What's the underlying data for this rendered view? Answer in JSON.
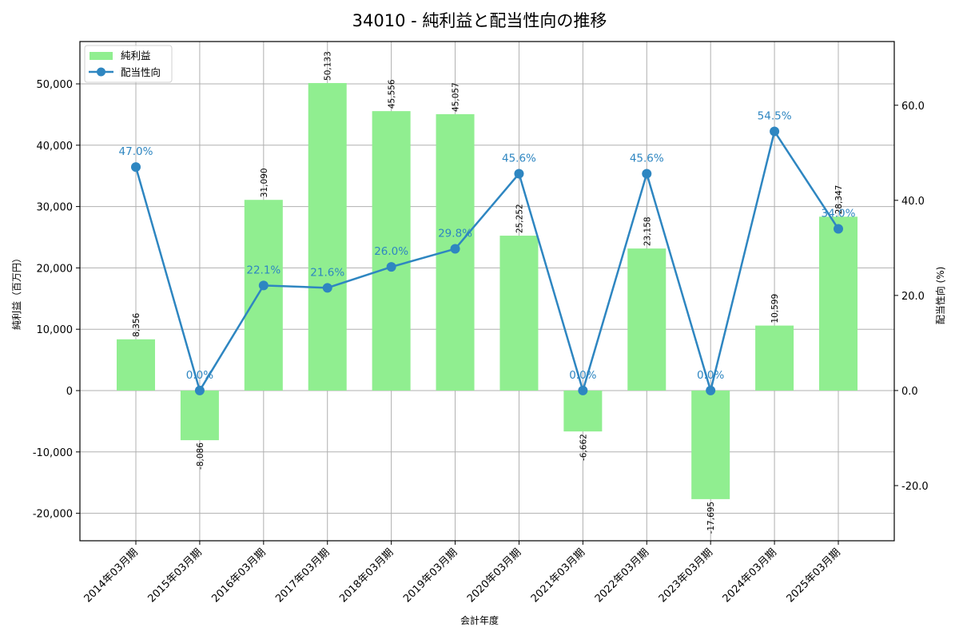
{
  "chart_data": {
    "type": "bar+line",
    "title": "34010 - 純利益と配当性向の推移",
    "xlabel": "会計年度",
    "ylabel_left": "純利益（百万円）",
    "ylabel_right": "配当性向 (%)",
    "categories": [
      "2014年03月期",
      "2015年03月期",
      "2016年03月期",
      "2017年03月期",
      "2018年03月期",
      "2019年03月期",
      "2020年03月期",
      "2021年03月期",
      "2022年03月期",
      "2023年03月期",
      "2024年03月期",
      "2025年03月期"
    ],
    "series": [
      {
        "name": "純利益",
        "type": "bar",
        "axis": "left",
        "color": "#90ee90",
        "values": [
          8356,
          -8086,
          31090,
          50133,
          45556,
          45057,
          25252,
          -6662,
          23158,
          -17695,
          10599,
          28347
        ],
        "labels": [
          "8,356",
          "-8,086",
          "31,090",
          "50,133",
          "45,556",
          "45,057",
          "25,252",
          "-6,662",
          "23,158",
          "-17,695",
          "10,599",
          "28,347"
        ]
      },
      {
        "name": "配当性向",
        "type": "line",
        "axis": "right",
        "color": "#2e86c1",
        "values": [
          47.0,
          0.0,
          22.1,
          21.6,
          26.0,
          29.8,
          45.6,
          0.0,
          45.6,
          0.0,
          54.5,
          34.0
        ],
        "labels": [
          "47.0%",
          "0.0%",
          "22.1%",
          "21.6%",
          "26.0%",
          "29.8%",
          "45.6%",
          "0.0%",
          "45.6%",
          "0.0%",
          "54.5%",
          "34.0%"
        ]
      }
    ],
    "left_axis": {
      "ylim": [
        -24480,
        56900
      ],
      "ticks": [
        -20000,
        -10000,
        0,
        10000,
        20000,
        30000,
        40000,
        50000
      ],
      "tick_labels": [
        "-20,000",
        "-10,000",
        "0",
        "10,000",
        "20,000",
        "30,000",
        "40,000",
        "50,000"
      ]
    },
    "right_axis": {
      "ylim": [
        -31.6,
        73.4
      ],
      "ticks": [
        -20,
        0,
        20,
        40,
        60
      ],
      "tick_labels": [
        "-20.0",
        "0.0",
        "20.0",
        "40.0",
        "60.0"
      ]
    },
    "grid": true,
    "legend": {
      "position": "upper left",
      "entries": [
        "純利益",
        "配当性向"
      ]
    }
  }
}
